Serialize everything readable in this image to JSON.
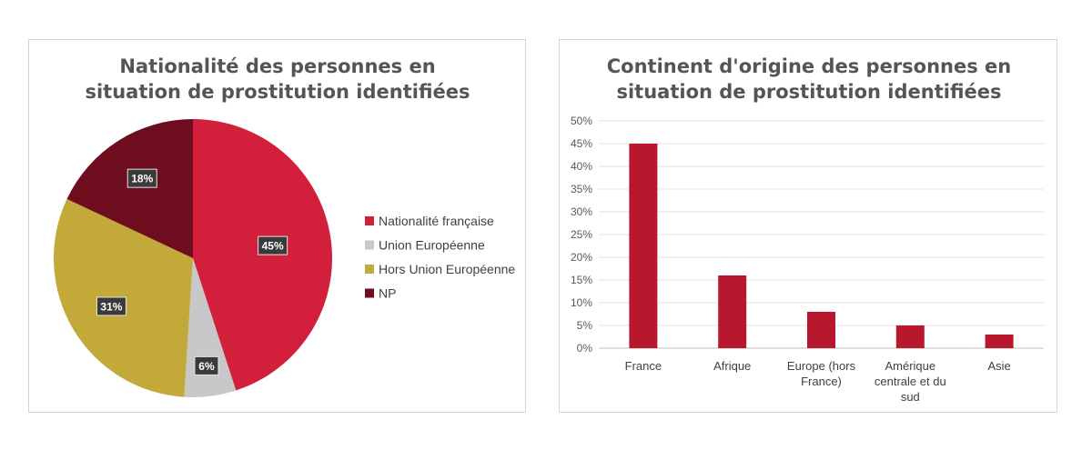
{
  "chart_data": [
    {
      "type": "pie",
      "title_lines": [
        "Nationalité des personnes en",
        "situation de prostitution identifiées"
      ],
      "categories": [
        "Nationalité française",
        "Union Européenne",
        "Hors Union Européenne",
        "NP"
      ],
      "values": [
        45,
        6,
        31,
        18
      ],
      "data_labels": [
        "45%",
        "6%",
        "31%",
        "18%"
      ],
      "colors": [
        "#d21f3c",
        "#c8c8c8",
        "#c3a93a",
        "#6d0d1e"
      ],
      "legend_position": "right"
    },
    {
      "type": "bar",
      "title_lines": [
        "Continent d'origine des personnes en",
        "situation de prostitution identifiées"
      ],
      "categories": [
        [
          "France"
        ],
        [
          "Afrique"
        ],
        [
          "Europe (hors",
          "France)"
        ],
        [
          "Amérique",
          "centrale et du",
          "sud"
        ],
        [
          "Asie"
        ]
      ],
      "values": [
        45,
        16,
        8,
        5,
        3
      ],
      "y_ticks": [
        "0%",
        "5%",
        "10%",
        "15%",
        "20%",
        "25%",
        "30%",
        "35%",
        "40%",
        "45%",
        "50%"
      ],
      "ylim": [
        0,
        50
      ],
      "grid": true,
      "color": "#b7182e"
    }
  ]
}
